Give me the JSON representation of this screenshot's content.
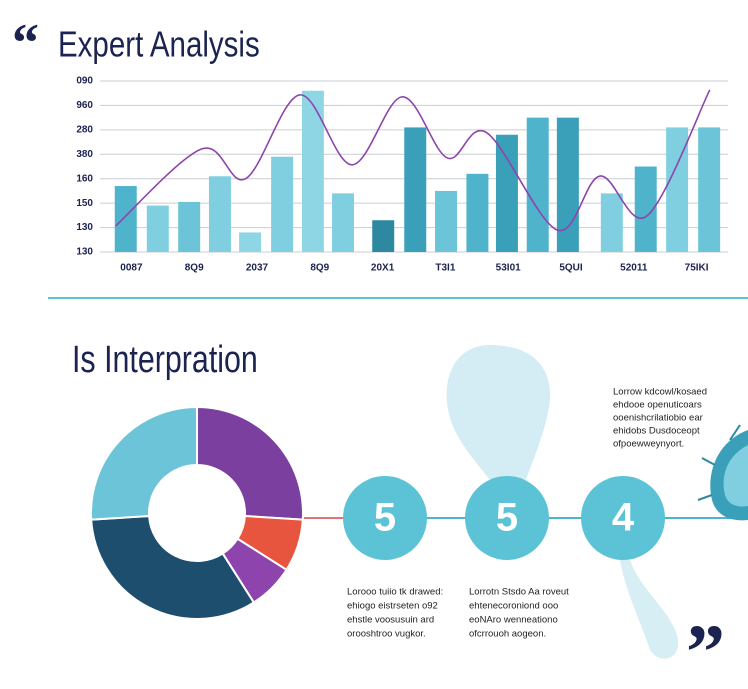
{
  "header": {
    "title": "Expert Analysis"
  },
  "chart_data": [
    {
      "type": "bar",
      "xlim": [
        0,
        10
      ],
      "xticks": [
        {
          "value": 0.5,
          "label": "0087"
        },
        {
          "value": 1.5,
          "label": "8Q9"
        },
        {
          "value": 2.5,
          "label": "2037"
        },
        {
          "value": 3.5,
          "label": "8Q9"
        },
        {
          "value": 4.5,
          "label": "20X1"
        },
        {
          "value": 5.5,
          "label": "T3I1"
        },
        {
          "value": 6.5,
          "label": "53I01"
        },
        {
          "value": 7.5,
          "label": "5QUI"
        },
        {
          "value": 8.5,
          "label": "52011"
        },
        {
          "value": 9.5,
          "label": "75IKI"
        }
      ],
      "ylim": [
        0,
        7
      ],
      "yticks": [
        {
          "value": 0,
          "label": "130"
        },
        {
          "value": 1,
          "label": "130"
        },
        {
          "value": 2,
          "label": "150"
        },
        {
          "value": 3,
          "label": "160"
        },
        {
          "value": 4,
          "label": "380"
        },
        {
          "value": 5,
          "label": "280"
        },
        {
          "value": 6,
          "label": "960"
        },
        {
          "value": 7,
          "label": "090"
        }
      ],
      "grid": true,
      "series": [
        {
          "type": "bar",
          "x": [
            0.41,
            0.92,
            1.42,
            1.91,
            2.39,
            2.9,
            3.39,
            3.87,
            4.51,
            5.02,
            5.51,
            6.01,
            6.48,
            6.97,
            7.45,
            8.15,
            8.69,
            9.19,
            9.7
          ],
          "values": [
            2.7,
            1.9,
            2.05,
            3.1,
            0.8,
            3.9,
            6.6,
            2.4,
            1.3,
            5.1,
            2.5,
            3.2,
            4.8,
            5.5,
            5.5,
            2.4,
            3.5,
            5.1,
            5.1
          ],
          "colors": [
            "#4fb3cc",
            "#7fcfe0",
            "#6cc4d9",
            "#7fcfe0",
            "#8fd6e5",
            "#7fcfe0",
            "#8fd6e5",
            "#7fcfe0",
            "#2d88a0",
            "#3aa0b9",
            "#6cc4d9",
            "#4fb3cc",
            "#3aa0b9",
            "#4fb3cc",
            "#3aa0b9",
            "#7fcfe0",
            "#4fb3cc",
            "#7fcfe0",
            "#6cc4d9"
          ]
        },
        {
          "type": "line",
          "x": [
            0.25,
            1.62,
            2.32,
            3.18,
            4.01,
            4.81,
            5.53,
            6.16,
            7.28,
            7.96,
            8.71,
            9.71
          ],
          "values": [
            1.07,
            4.22,
            3.0,
            6.43,
            3.57,
            6.35,
            3.85,
            4.88,
            0.9,
            3.11,
            1.48,
            6.64
          ],
          "color": "#8e44ad"
        }
      ]
    },
    {
      "type": "pie",
      "donut": true,
      "values": [
        26,
        8,
        7,
        33,
        26
      ],
      "colors": [
        "#7b3fa0",
        "#e8553f",
        "#8e44ad",
        "#1d4e6e",
        "#6cc4d9"
      ]
    }
  ],
  "section": {
    "title": "Is Interpration"
  },
  "steps": [
    {
      "number": "5",
      "lines": [
        "Lorooo tuiio tk drawed:",
        "ehiogo eistrseten o92",
        "ehstle voosusuin ard",
        "orooshtroo vugkor."
      ]
    },
    {
      "number": "5",
      "lines": [
        "Lorrotn Stsdo Aa roveut",
        "ehtenecoroniond ooo",
        "eoNAro wenneationo",
        "ofcrrouoh aogeon."
      ]
    },
    {
      "number": "4"
    }
  ],
  "callout": {
    "lines": [
      "Lorrow kdcowl/kosaed",
      "ehdooe openuticoars",
      "ooenishcrilatiobio ear",
      "ehidobs Dusdoceopt",
      "ofpoewweynyort."
    ]
  }
}
